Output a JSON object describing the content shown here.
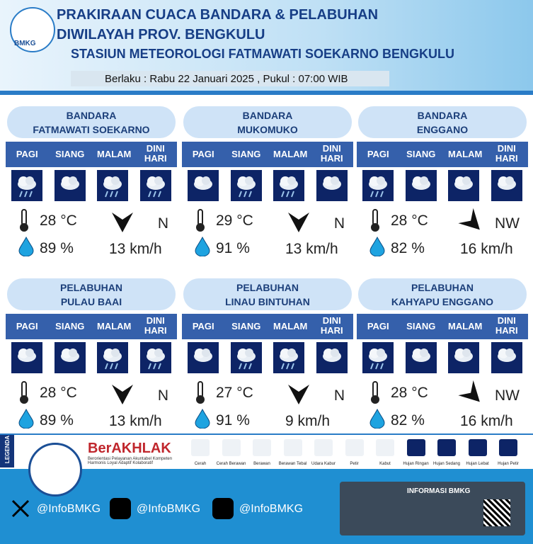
{
  "header": {
    "logo": "BMKG",
    "title_line1": "PRAKIRAAN CUACA BANDARA & PELABUHAN",
    "title_line2": "DIWILAYAH PROV. BENGKULU",
    "station": "STASIUN METEOROLOGI FATMAWATI SOEKARNO BENGKULU",
    "validity": "Berlaku : Rabu 22 Januari 2025 , Pukul : 07:00 WIB"
  },
  "periods": [
    "PAGI",
    "SIANG",
    "MALAM",
    "DINI HARI"
  ],
  "locations": [
    {
      "name": [
        "BANDARA",
        "FATMAWATI SOEKARNO"
      ],
      "temperature": "28 °C",
      "humidity": "89 %",
      "wind_direction": "N",
      "wind_speed": "13 km/h"
    },
    {
      "name": [
        "BANDARA",
        "MUKOMUKO"
      ],
      "temperature": "29 °C",
      "humidity": "91 %",
      "wind_direction": "N",
      "wind_speed": "13 km/h"
    },
    {
      "name": [
        "BANDARA",
        "ENGGANO"
      ],
      "temperature": "28 °C",
      "humidity": "82 %",
      "wind_direction": "NW",
      "wind_speed": "16 km/h"
    },
    {
      "name": [
        "PELABUHAN",
        "PULAU BAAI"
      ],
      "temperature": "28 °C",
      "humidity": "89 %",
      "wind_direction": "N",
      "wind_speed": "13 km/h"
    },
    {
      "name": [
        "PELABUHAN",
        "LINAU BINTUHAN"
      ],
      "temperature": "27 °C",
      "humidity": "91 %",
      "wind_direction": "N",
      "wind_speed": "9 km/h"
    },
    {
      "name": [
        "PELABUHAN",
        "KAHYAPU ENGGANO"
      ],
      "temperature": "28 °C",
      "humidity": "82 %",
      "wind_direction": "NW",
      "wind_speed": "16 km/h"
    }
  ],
  "legend": {
    "label": "LEGENDA",
    "brand": "BerAKHLAK",
    "tagline": "Berorientasi Pelayanan Akuntabel Kompeten Harmonis Loyal Adaptif Kolaboratif",
    "items": [
      "Cerah",
      "Cerah Berawan",
      "Berawan",
      "Berawan Tebal",
      "Udara Kabur",
      "Petir",
      "Kabut",
      "Hujan Ringan",
      "Hujan Sedang",
      "Hujan Lebat",
      "Hujan Petir"
    ]
  },
  "footer": {
    "socials": [
      "@InfoBMKG",
      "@InfoBMKG",
      "@InfoBMKG"
    ],
    "info_title": "INFORMASI BMKG"
  }
}
